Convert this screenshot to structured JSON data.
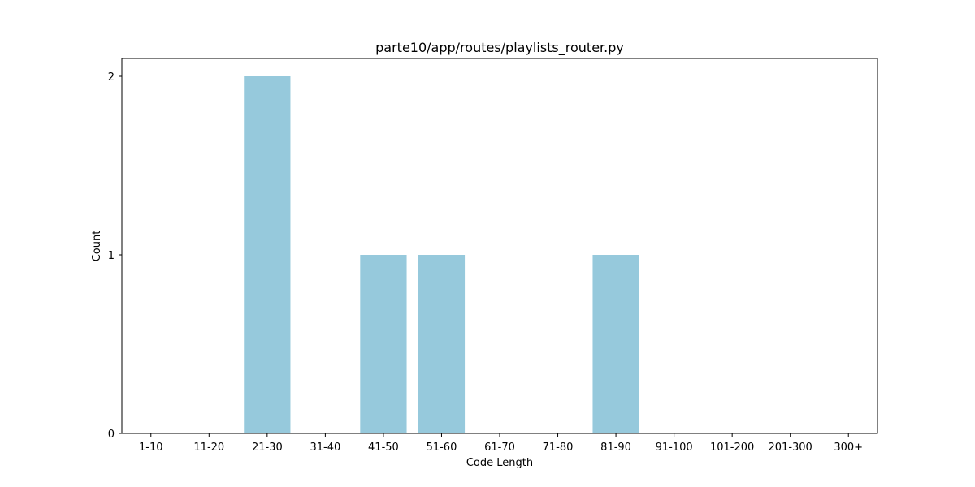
{
  "chart_data": {
    "type": "bar",
    "title": "parte10/app/routes/playlists_router.py",
    "xlabel": "Code Length",
    "ylabel": "Count",
    "categories": [
      "1-10",
      "11-20",
      "21-30",
      "31-40",
      "41-50",
      "51-60",
      "61-70",
      "71-80",
      "81-90",
      "91-100",
      "101-200",
      "201-300",
      "300+"
    ],
    "values": [
      0,
      0,
      2,
      0,
      1,
      1,
      0,
      0,
      1,
      0,
      0,
      0,
      0
    ],
    "ylim": [
      0,
      2.1
    ],
    "yticks": [
      "0",
      "1",
      "2"
    ],
    "bar_color": "#96c9dc",
    "grid": false,
    "legend": "none"
  }
}
